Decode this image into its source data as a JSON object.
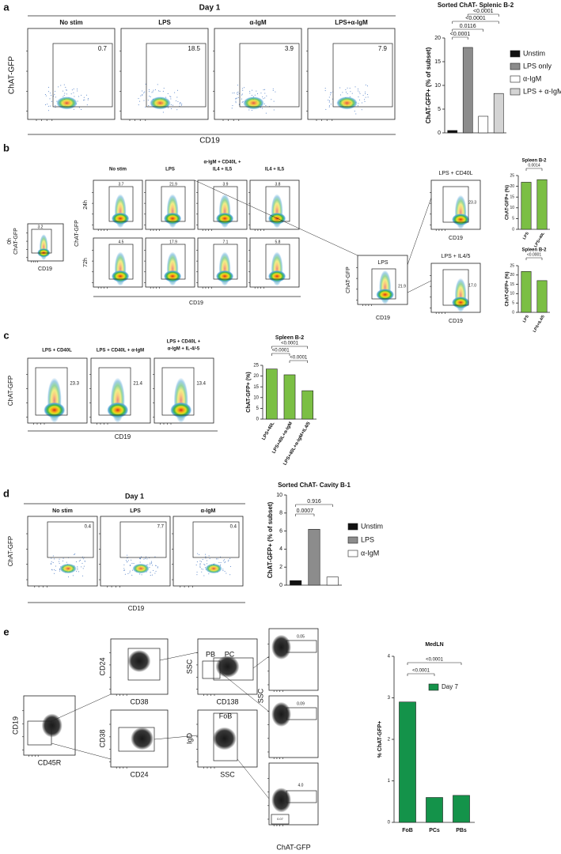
{
  "figure": {
    "a": {
      "label": "a",
      "header": "Day 1",
      "ylabel": "ChAT-GFP",
      "xlabel": "CD19",
      "plots": [
        {
          "title": "No stim",
          "gate": "0.7"
        },
        {
          "title": "LPS",
          "gate": "18.5"
        },
        {
          "title": "α-IgM",
          "gate": "3.9"
        },
        {
          "title": "LPS+α-IgM",
          "gate": "7.9"
        }
      ]
    },
    "b": {
      "label": "b",
      "zero": {
        "time": "0h",
        "gate": "3.2",
        "ylabel": "ChAT-GFP",
        "xlabel": "CD19"
      },
      "columns": [
        "No stim",
        "LPS",
        [
          "α-IgM + CD40L +",
          "IL4 + IL5"
        ],
        "IL4 + IL5"
      ],
      "rows": [
        {
          "time": "24h",
          "gates": [
            "3.7",
            "21.9",
            "3.9",
            "3.8"
          ]
        },
        {
          "time": "72h",
          "gates": [
            "4.5",
            "17.9",
            "7.1",
            "5.8"
          ]
        }
      ],
      "ylabel": "ChAT-GFP",
      "xlabel": "CD19",
      "middle": {
        "title": "LPS",
        "gate": "21.9",
        "ylabel": "ChAT-GFP",
        "xlabel": "CD19"
      },
      "right": [
        {
          "title": "LPS + CD40L",
          "gate": "23.3",
          "xlabel": "CD19"
        },
        {
          "title": "LPS + IL4/5",
          "gate": "17.0",
          "xlabel": "CD19"
        }
      ]
    },
    "c": {
      "label": "c",
      "ylabel": "ChAT-GFP",
      "xlabel": "CD19",
      "plots": [
        {
          "title": [
            "LPS + CD40L"
          ],
          "gate": "23.3"
        },
        {
          "title": [
            "LPS + CD40L + α-IgM"
          ],
          "gate": "21.4"
        },
        {
          "title": [
            "LPS + CD40L +",
            "α-IgM + IL-4/-5"
          ],
          "gate": "13.4"
        }
      ]
    },
    "d": {
      "label": "d",
      "header": "Day 1",
      "ylabel": "ChAT-GFP",
      "xlabel": "CD19",
      "plots": [
        {
          "title": "No stim",
          "gate": "0.4"
        },
        {
          "title": "LPS",
          "gate": "7.7"
        },
        {
          "title": "α-IgM",
          "gate": "0.4"
        }
      ]
    },
    "e": {
      "label": "e",
      "plots": [
        {
          "ylabel": "CD19",
          "xlabel": "CD45R"
        },
        {
          "ylabel": "CD24",
          "xlabel": "CD38"
        },
        {
          "ylabel": "SSC",
          "xlabel": "CD138",
          "gates": [
            "PB",
            "PC"
          ]
        },
        {
          "ylabel": "CD38",
          "xlabel": "CD24"
        },
        {
          "ylabel": "IgD",
          "xlabel": "SSC",
          "gates": [
            "FoB"
          ]
        }
      ],
      "column": {
        "ylabel": "SSC",
        "xlabel": "ChAT-GFP",
        "gates": [
          "0.05",
          "0.09",
          "4.0",
          "0.07"
        ]
      }
    }
  },
  "chart_data": [
    {
      "type": "bar",
      "title": "Sorted ChAT- Splenic B-2",
      "ylabel": "ChAT-GFP+ (% of subset)",
      "categories": [
        null
      ],
      "series": [
        {
          "name": "Unstim",
          "color": "#111111",
          "values": [
            0.5
          ]
        },
        {
          "name": "LPS only",
          "color": "#8c8c8c",
          "values": [
            18
          ]
        },
        {
          "name": "α-IgM",
          "color": "#ffffff",
          "values": [
            3.5
          ]
        },
        {
          "name": "LPS + α-IgM",
          "color": "#d4d4d4",
          "values": [
            8.3
          ]
        }
      ],
      "ylim": [
        0,
        20
      ],
      "yticks": [
        0,
        5,
        10,
        15,
        20
      ],
      "legend": "right",
      "annotations": [
        "<0.0001",
        "<0.0001",
        "0.0116",
        "<0.0001"
      ]
    },
    {
      "type": "bar",
      "title": "Spleen B-2",
      "ylabel": "ChAT-GFP+ (%)",
      "categories": [
        "LPS",
        "LPS+40L"
      ],
      "series": [
        {
          "color": "#7bbf44",
          "values": [
            21.9,
            23.1
          ]
        }
      ],
      "ylim": [
        0,
        25
      ],
      "yticks": [
        0,
        5,
        10,
        15,
        20,
        25
      ],
      "annotations": [
        "0.0014"
      ]
    },
    {
      "type": "bar",
      "title": "Spleen B-2",
      "ylabel": "ChAT-GFP+ (%)",
      "categories": [
        "LPS",
        "LPS+IL4/5"
      ],
      "series": [
        {
          "color": "#7bbf44",
          "values": [
            21.9,
            17.0
          ]
        }
      ],
      "ylim": [
        0,
        25
      ],
      "yticks": [
        0,
        5,
        10,
        15,
        20,
        25
      ],
      "annotations": [
        "<0.0001"
      ]
    },
    {
      "type": "bar",
      "title": "Spleen B-2",
      "ylabel": "ChAT-GFP+ (%)",
      "categories": [
        "LPS+40L",
        "LPS+40L+α-IgM",
        "LPS+40L+α-IgM+IL4/5"
      ],
      "series": [
        {
          "color": "#7bbf44",
          "values": [
            23.3,
            20.6,
            13.2
          ]
        }
      ],
      "ylim": [
        0,
        25
      ],
      "yticks": [
        0,
        5,
        10,
        15,
        20,
        25
      ],
      "annotations": [
        "<0.0001",
        "<0.0001",
        "<0.0001"
      ]
    },
    {
      "type": "bar",
      "title": "Sorted ChAT- Cavity B-1",
      "ylabel": "ChAT-GFP+ (% of subset)",
      "categories": [
        null
      ],
      "series": [
        {
          "name": "Unstim",
          "color": "#111111",
          "values": [
            0.5
          ]
        },
        {
          "name": "LPS",
          "color": "#8c8c8c",
          "values": [
            6.2
          ]
        },
        {
          "name": "α-IgM",
          "color": "#ffffff",
          "values": [
            0.9
          ]
        }
      ],
      "ylim": [
        0,
        10
      ],
      "yticks": [
        0,
        2,
        4,
        6,
        8,
        10
      ],
      "legend": "right",
      "annotations": [
        "0.916",
        "0.0007"
      ]
    },
    {
      "type": "bar",
      "title": "MedLN",
      "ylabel": "% ChAT-GFP+",
      "categories": [
        "FoB",
        "PCs",
        "PBs"
      ],
      "series": [
        {
          "name": "Day 7",
          "color": "#14934a",
          "values": [
            2.9,
            0.6,
            0.65
          ]
        }
      ],
      "ylim": [
        0,
        4
      ],
      "yticks": [
        0,
        1,
        2,
        3,
        4
      ],
      "legend": "inside",
      "annotations": [
        "<0.0001",
        "<0.0001"
      ]
    }
  ]
}
